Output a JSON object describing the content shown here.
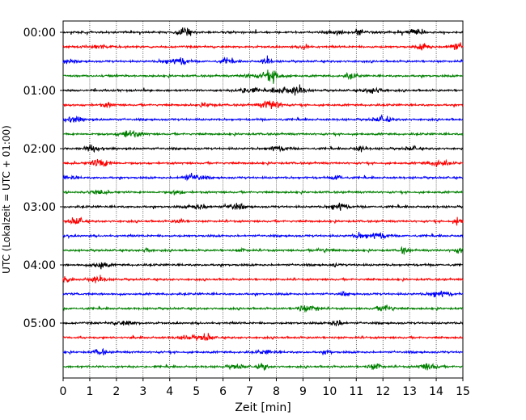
{
  "chart_data": {
    "type": "line",
    "title": "",
    "xlabel": "Zeit  [min]",
    "ylabel": "UTC (Lokalzeit = UTC + 01:00)",
    "xlim": [
      0,
      15
    ],
    "x_ticks": [
      "0",
      "1",
      "2",
      "3",
      "4",
      "5",
      "6",
      "7",
      "8",
      "9",
      "10",
      "11",
      "12",
      "13",
      "14",
      "15"
    ],
    "y_ticks": [
      {
        "label": "00:00",
        "row": 0
      },
      {
        "label": "01:00",
        "row": 4
      },
      {
        "label": "02:00",
        "row": 8
      },
      {
        "label": "03:00",
        "row": 12
      },
      {
        "label": "04:00",
        "row": 16
      },
      {
        "label": "05:00",
        "row": 20
      }
    ],
    "grid": "vertical-dotted",
    "rows": 24,
    "minutes_per_row": 15,
    "series_colors": [
      "#000000",
      "#ff0000",
      "#0000ff",
      "#008000"
    ]
  }
}
